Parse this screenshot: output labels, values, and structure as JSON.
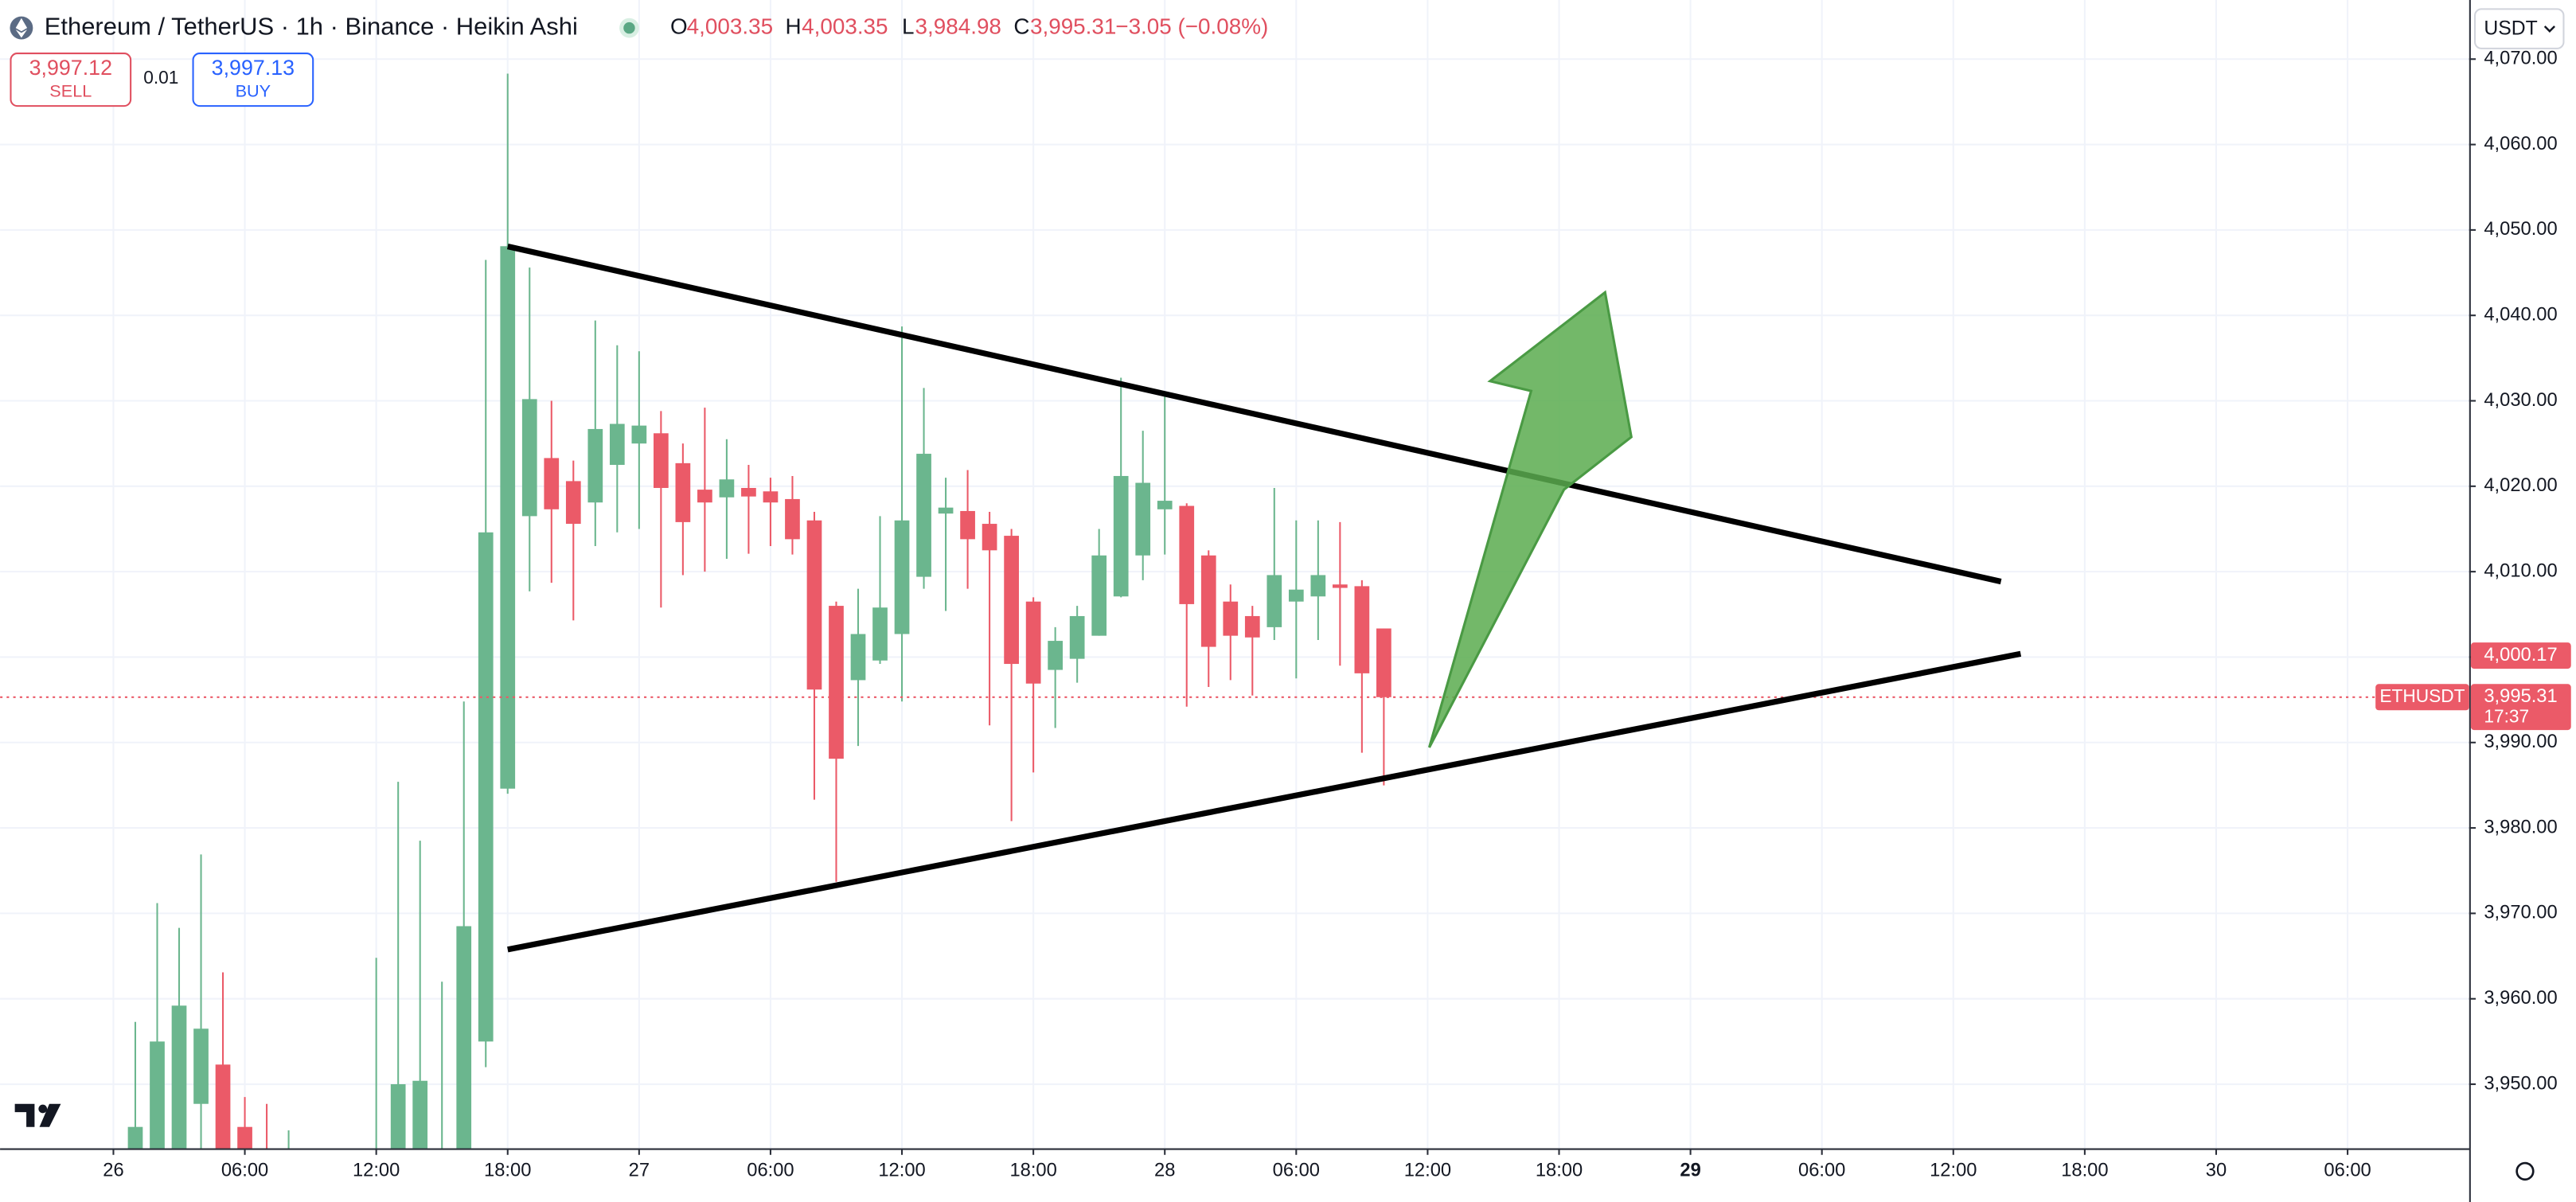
{
  "header": {
    "title": "Ethereum / TetherUS · 1h · Binance · Heikin Ashi",
    "ohlc_legend": [
      {
        "key": "O",
        "value": "4,003.35"
      },
      {
        "key": "H",
        "value": "4,003.35"
      },
      {
        "key": "L",
        "value": "3,984.98"
      },
      {
        "key": "C",
        "value": "3,995.31"
      }
    ],
    "change": "−3.05 (−0.08%)",
    "sell": {
      "price": "3,997.12",
      "label": "SELL"
    },
    "spread": "0.01",
    "buy": {
      "price": "3,997.13",
      "label": "BUY"
    },
    "currency": "USDT"
  },
  "chart_data": {
    "type": "candlestick",
    "x": [
      1,
      2,
      3,
      4,
      5,
      6,
      7,
      8,
      12,
      13,
      14,
      15,
      16,
      17,
      18,
      19,
      20,
      21,
      22,
      23,
      24,
      25,
      26,
      27,
      28,
      29,
      30,
      31,
      32,
      33,
      34,
      35,
      36,
      37,
      38,
      39,
      40,
      41,
      42,
      43,
      44,
      45,
      46,
      47,
      48,
      49,
      50,
      51,
      52,
      53,
      54,
      55,
      56,
      57,
      58
    ],
    "open": [
      3940,
      3940,
      3942,
      3947.7,
      3952.3,
      3945,
      3942,
      3940,
      3938,
      3942,
      3942,
      3940,
      3942,
      3955,
      3984.6,
      4016.5,
      4023.3,
      4020.6,
      4018.1,
      4022.5,
      4025,
      4026.2,
      4022.7,
      4019.6,
      4018.7,
      4019.8,
      4019.4,
      4018.5,
      4016,
      4006,
      3997.3,
      3999.6,
      4002.7,
      4009.4,
      4016.8,
      4017.1,
      4015.6,
      4014.2,
      4006.5,
      3998.5,
      3999.8,
      4002.5,
      4007.1,
      4011.9,
      4017.3,
      4017.7,
      4011.9,
      4006.5,
      4004.8,
      4003.5,
      4006.5,
      4007.1,
      4008.5,
      4008.3,
      4003.35
    ],
    "high": [
      3957.3,
      3971.2,
      3968.3,
      3976.9,
      3963.1,
      3948.5,
      3947.7,
      3944.6,
      3964.8,
      3985.4,
      3978.5,
      3962,
      3994.8,
      4046.5,
      4068.3,
      4045.6,
      4030,
      4023,
      4039.4,
      4036.5,
      4035.8,
      4028.8,
      4025,
      4029.2,
      4025.5,
      4022.5,
      4021,
      4021.2,
      4017,
      4006.5,
      4008,
      4016.5,
      4038.7,
      4031.5,
      4021,
      4021.9,
      4017,
      4015,
      4007,
      4003.5,
      4006,
      4015,
      4032.7,
      4026.5,
      4030.8,
      4018,
      4012.5,
      4008.5,
      4006,
      4019.8,
      4016,
      4016,
      4015.8,
      4009,
      4003.35
    ],
    "low": [
      3935,
      3935,
      3935,
      3940,
      3935,
      3935,
      3935,
      3935,
      3930,
      3935,
      3935,
      3935,
      3935,
      3952,
      3984,
      4007.7,
      4008.7,
      4004.3,
      4013,
      4014.6,
      4015,
      4005.8,
      4009.6,
      4010,
      4011.5,
      4012.1,
      4013,
      4012,
      3983.3,
      3973.7,
      3989.6,
      3999.2,
      3994.8,
      4008,
      4005.4,
      4008,
      3992,
      3980.8,
      3986.5,
      3991.7,
      3997,
      4002.5,
      4007,
      4009,
      4012,
      3994.2,
      3996.5,
      3997.3,
      3995.5,
      4002,
      3997.5,
      4002,
      3999,
      3988.8,
      3984.98
    ],
    "close": [
      3945,
      3955,
      3959.2,
      3956.5,
      3942,
      3942,
      3941,
      3941,
      3940,
      3950,
      3950.4,
      3941,
      3968.5,
      4014.6,
      4048.1,
      4030.2,
      4017.3,
      4015.6,
      4026.7,
      4027.3,
      4027.1,
      4019.8,
      4015.8,
      4018.1,
      4020.8,
      4018.8,
      4018.1,
      4013.8,
      3996.2,
      3988.1,
      4002.7,
      4005.8,
      4016,
      4023.8,
      4017.5,
      4013.8,
      4012.5,
      3999.2,
      3996.9,
      4001.9,
      4004.8,
      4011.9,
      4021.2,
      4020.4,
      4018.3,
      4006.2,
      4001.2,
      4002.5,
      4002.3,
      4009.6,
      4007.9,
      4009.6,
      4008.1,
      3998.1,
      3995.31
    ],
    "up_color": "#6bb68e",
    "down_color": "#eb5a68",
    "xlim": [
      -5.175,
      107.55
    ],
    "xticks": [
      {
        "value": 0,
        "label": "26"
      },
      {
        "value": 6,
        "label": "06:00"
      },
      {
        "value": 12,
        "label": "12:00"
      },
      {
        "value": 18,
        "label": "18:00"
      },
      {
        "value": 24,
        "label": "27"
      },
      {
        "value": 30,
        "label": "06:00"
      },
      {
        "value": 36,
        "label": "12:00"
      },
      {
        "value": 42,
        "label": "18:00"
      },
      {
        "value": 48,
        "label": "28"
      },
      {
        "value": 54,
        "label": "06:00"
      },
      {
        "value": 60,
        "label": "12:00"
      },
      {
        "value": 66,
        "label": "18:00"
      },
      {
        "value": 72,
        "label": "29"
      },
      {
        "value": 78,
        "label": "06:00"
      },
      {
        "value": 84,
        "label": "12:00"
      },
      {
        "value": 90,
        "label": "18:00"
      },
      {
        "value": 96,
        "label": "30"
      },
      {
        "value": 102,
        "label": "06:00"
      }
    ],
    "ylim": [
      3942.5,
      4076.92
    ],
    "yticks": [
      {
        "value": 3950,
        "label": "3,950.00"
      },
      {
        "value": 3960,
        "label": "3,960.00"
      },
      {
        "value": 3970,
        "label": "3,970.00"
      },
      {
        "value": 3980,
        "label": "3,980.00"
      },
      {
        "value": 3990,
        "label": "3,990.00"
      },
      {
        "value": 4000,
        "label": "4,000.00"
      },
      {
        "value": 4010,
        "label": "4,010.00"
      },
      {
        "value": 4020,
        "label": "4,020.00"
      },
      {
        "value": 4030,
        "label": "4,030.00"
      },
      {
        "value": 4040,
        "label": "4,040.00"
      },
      {
        "value": 4050,
        "label": "4,050.00"
      },
      {
        "value": 4060,
        "label": "4,060.00"
      },
      {
        "value": 4070,
        "label": "4,070.00"
      }
    ],
    "grid": true,
    "price_marker": {
      "value": 4000.17,
      "label": "4,000.17"
    },
    "last_price": {
      "value": 3995.31,
      "label": "3,995.31",
      "symbol": "ETHUSDT",
      "countdown": "17:37"
    }
  }
}
